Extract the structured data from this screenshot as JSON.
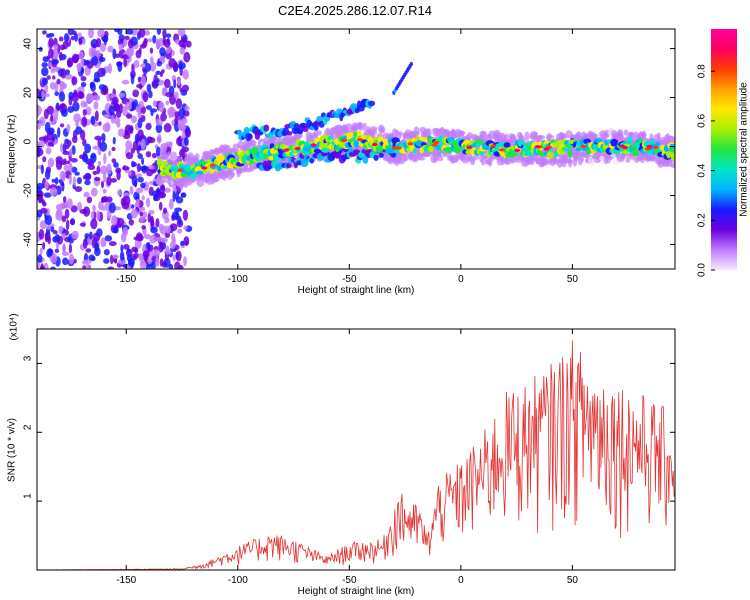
{
  "title": "C2E4.2025.286.12.07.R14",
  "chart_data": [
    {
      "type": "heatmap",
      "xlabel": "Height of straight line (km)",
      "ylabel": "Frequency (Hz)",
      "xlim": [
        -190,
        96
      ],
      "ylim": [
        -50,
        48
      ],
      "xticks": [
        -150,
        -100,
        -50,
        0,
        50
      ],
      "yticks": [
        40,
        20,
        0,
        -20,
        -40
      ],
      "colorbar": {
        "label": "Normalized spectral amplitude",
        "ticks": [
          "0.0",
          "0.2",
          "0.4",
          "0.6",
          "0.8"
        ],
        "range": [
          0,
          0.97
        ],
        "colors": [
          "#f4e8ff",
          "#c27cff",
          "#6b00e0",
          "#1a1aff",
          "#00b4ff",
          "#00e6c8",
          "#20e640",
          "#a8f000",
          "#ffe800",
          "#ffa000",
          "#ff3c00",
          "#ff0064",
          "#ff0099"
        ]
      },
      "noise_region_x": [
        -190,
        -122
      ],
      "ridge": [
        {
          "x": -133,
          "f": -9
        },
        {
          "x": -120,
          "f": -10
        },
        {
          "x": -105,
          "f": -6
        },
        {
          "x": -90,
          "f": -3
        },
        {
          "x": -75,
          "f": -1
        },
        {
          "x": -60,
          "f": 1
        },
        {
          "x": -45,
          "f": 3
        },
        {
          "x": -30,
          "f": 0
        },
        {
          "x": -15,
          "f": 1
        },
        {
          "x": 0,
          "f": 0
        },
        {
          "x": 20,
          "f": -1
        },
        {
          "x": 40,
          "f": -1
        },
        {
          "x": 60,
          "f": 0
        },
        {
          "x": 80,
          "f": 0
        },
        {
          "x": 96,
          "f": -2
        }
      ],
      "upper_branch": [
        {
          "x": -100,
          "f": 5
        },
        {
          "x": -80,
          "f": 6
        },
        {
          "x": -65,
          "f": 10
        },
        {
          "x": -50,
          "f": 15
        },
        {
          "x": -40,
          "f": 18
        }
      ],
      "lower_branch": [
        {
          "x": -90,
          "f": -8
        },
        {
          "x": -70,
          "f": -5
        },
        {
          "x": -55,
          "f": -3
        },
        {
          "x": -45,
          "f": -4
        },
        {
          "x": -30,
          "f": -1
        }
      ],
      "spur": [
        {
          "x": -30,
          "f": 22
        },
        {
          "x": -26,
          "f": 28
        },
        {
          "x": -22,
          "f": 34
        }
      ]
    },
    {
      "type": "line",
      "xlabel": "Height of straight line (km)",
      "ylabel": "SNR (10 * v/v)",
      "yscale_label": "(x10⁴)",
      "xlim": [
        -190,
        96
      ],
      "ylim": [
        0,
        3.5
      ],
      "xticks": [
        -150,
        -100,
        -50,
        0,
        50
      ],
      "yticks": [
        1,
        2,
        3
      ],
      "color": "#e53030",
      "envelope": [
        {
          "x": -190,
          "y": 0.0
        },
        {
          "x": -125,
          "y": 0.02
        },
        {
          "x": -115,
          "y": 0.1
        },
        {
          "x": -100,
          "y": 0.35
        },
        {
          "x": -85,
          "y": 0.55
        },
        {
          "x": -75,
          "y": 0.45
        },
        {
          "x": -60,
          "y": 0.2
        },
        {
          "x": -50,
          "y": 0.4
        },
        {
          "x": -35,
          "y": 0.45
        },
        {
          "x": -28,
          "y": 1.15
        },
        {
          "x": -18,
          "y": 0.9
        },
        {
          "x": -15,
          "y": 0.5
        },
        {
          "x": -10,
          "y": 1.3
        },
        {
          "x": 0,
          "y": 1.6
        },
        {
          "x": 10,
          "y": 2.0
        },
        {
          "x": 20,
          "y": 2.6
        },
        {
          "x": 30,
          "y": 2.75
        },
        {
          "x": 40,
          "y": 3.0
        },
        {
          "x": 50,
          "y": 3.35
        },
        {
          "x": 60,
          "y": 3.0
        },
        {
          "x": 70,
          "y": 2.8
        },
        {
          "x": 80,
          "y": 2.6
        },
        {
          "x": 90,
          "y": 2.4
        },
        {
          "x": 96,
          "y": 2.2
        }
      ]
    }
  ]
}
